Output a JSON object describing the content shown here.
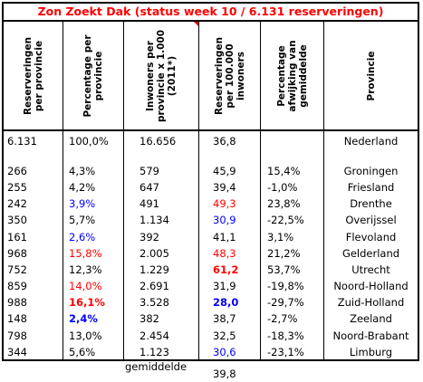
{
  "title": "Zon Zoekt Dak (status week 10 / 6.131 reserveringen)",
  "headers": {
    "h1": [
      "Reserveringen",
      "per provincie"
    ],
    "h2": [
      "Percentage per",
      "provincie"
    ],
    "h3": [
      "Inwoners per",
      "provincie x 1.000",
      "(2011*)"
    ],
    "h4": [
      "Reserveringen",
      "per 100.000",
      "inwoners"
    ],
    "h5": [
      "Percentage",
      "afwijking van",
      "gemiddelde"
    ],
    "h6": [
      "Provincie"
    ]
  },
  "total": {
    "res": "6.131",
    "pct": "100,0%",
    "inw": "16.656",
    "per100k": "36,8",
    "afw": "",
    "prov": "Nederland"
  },
  "rows": [
    {
      "res": "266",
      "pct": "4,3%",
      "inw": "579",
      "per100k": "45,9",
      "afw": "15,4%",
      "prov": "Groningen",
      "pct_style": "",
      "per_style": ""
    },
    {
      "res": "255",
      "pct": "4,2%",
      "inw": "647",
      "per100k": "39,4",
      "afw": "-1,0%",
      "prov": "Friesland",
      "pct_style": "",
      "per_style": ""
    },
    {
      "res": "242",
      "pct": "3,9%",
      "inw": "491",
      "per100k": "49,3",
      "afw": "23,8%",
      "prov": "Drenthe",
      "pct_style": "blue",
      "per_style": "red"
    },
    {
      "res": "350",
      "pct": "5,7%",
      "inw": "1.134",
      "per100k": "30,9",
      "afw": "-22,5%",
      "prov": "Overijssel",
      "pct_style": "",
      "per_style": "blue"
    },
    {
      "res": "161",
      "pct": "2,6%",
      "inw": "392",
      "per100k": "41,1",
      "afw": "3,1%",
      "prov": "Flevoland",
      "pct_style": "blue",
      "per_style": ""
    },
    {
      "res": "968",
      "pct": "15,8%",
      "inw": "2.005",
      "per100k": "48,3",
      "afw": "21,2%",
      "prov": "Gelderland",
      "pct_style": "red",
      "per_style": "red"
    },
    {
      "res": "752",
      "pct": "12,3%",
      "inw": "1.229",
      "per100k": "61,2",
      "afw": "53,7%",
      "prov": "Utrecht",
      "pct_style": "",
      "per_style": "red bold"
    },
    {
      "res": "859",
      "pct": "14,0%",
      "inw": "2.691",
      "per100k": "31,9",
      "afw": "-19,8%",
      "prov": "Noord-Holland",
      "pct_style": "red",
      "per_style": ""
    },
    {
      "res": "988",
      "pct": "16,1%",
      "inw": "3.528",
      "per100k": "28,0",
      "afw": "-29,7%",
      "prov": "Zuid-Holland",
      "pct_style": "red bold",
      "per_style": "blue bold"
    },
    {
      "res": "148",
      "pct": "2,4%",
      "inw": "382",
      "per100k": "38,7",
      "afw": "-2,7%",
      "prov": "Zeeland",
      "pct_style": "blue bold",
      "per_style": ""
    },
    {
      "res": "798",
      "pct": "13,0%",
      "inw": "2.454",
      "per100k": "32,5",
      "afw": "-18,3%",
      "prov": "Noord-Brabant",
      "pct_style": "",
      "per_style": ""
    },
    {
      "res": "344",
      "pct": "5,6%",
      "inw": "1.123",
      "per100k": "30,6",
      "afw": "-23,1%",
      "prov": "Limburg",
      "pct_style": "",
      "per_style": "blue"
    }
  ],
  "footer": {
    "label": "gemiddelde",
    "value": "39,8"
  },
  "colors": {
    "title": "#ff0000",
    "high": "#ff0000",
    "low": "#0000ff",
    "border": "#000000"
  }
}
